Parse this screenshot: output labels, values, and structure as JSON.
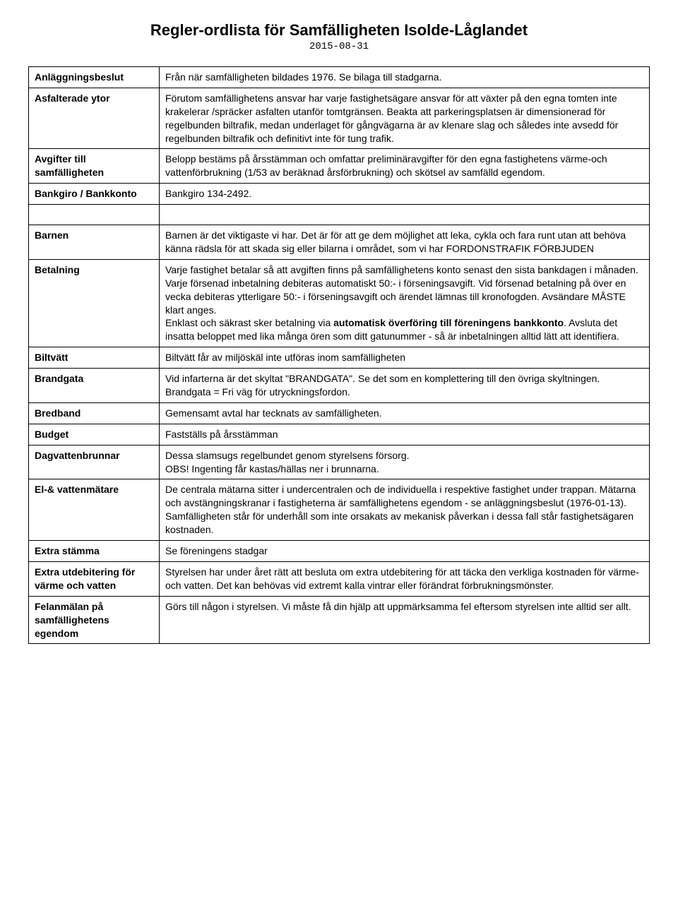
{
  "title": "Regler-ordlista för Samfälligheten Isolde-Låglandet",
  "date": "2015-08-31",
  "rows": [
    {
      "term": "Anläggningsbeslut",
      "def": "Från när samfälligheten bildades 1976. Se bilaga till stadgarna."
    },
    {
      "term": "Asfalterade ytor",
      "def": "Förutom samfällighetens ansvar har varje fastighetsägare ansvar för att växter på den egna tomten inte krakelerar /spräcker asfalten utanför tomtgränsen. Beakta att parkeringsplatsen är dimensionerad för regelbunden biltrafik, medan underlaget för gångvägarna är av klenare slag och således inte avsedd för regelbunden biltrafik och definitivt inte för tung trafik."
    },
    {
      "term": "Avgifter till samfälligheten",
      "def": "Belopp bestäms på årsstämman och omfattar preliminäravgifter för den egna fastighetens värme-och vattenförbrukning (1/53 av beräknad årsförbrukning) och skötsel av samfälld egendom."
    },
    {
      "term": "Bankgiro / Bankkonto",
      "def": "Bankgiro 134-2492."
    },
    {
      "spacer": true
    },
    {
      "term": "Barnen",
      "def": "Barnen är det viktigaste vi har. Det är för att ge dem möjlighet att leka, cykla och fara runt utan att behöva känna rädsla för att skada sig eller bilarna i området, som vi har FORDONSTRAFIK FÖRBJUDEN"
    },
    {
      "term": "Betalning",
      "def_html": "Varje fastighet betalar så att avgiften finns på samfällighetens konto senast den sista bankdagen i månaden. Varje försenad inbetalning debiteras automatiskt 50:- i förseningsavgift. Vid försenad betalning på över en vecka debiteras ytterligare 50:- i förseningsavgift och ärendet lämnas till kronofogden. Avsändare MÅSTE klart anges.<br>Enklast och säkrast sker betalning via <b class=\"inline\">automatisk överföring till föreningens bankkonto</b>. Avsluta det insatta beloppet med lika många ören som ditt gatunummer - så är inbetalningen alltid lätt att identifiera."
    },
    {
      "term": "Biltvätt",
      "def": "Biltvätt får av miljöskäl inte utföras inom samfälligheten"
    },
    {
      "term": "Brandgata",
      "def": "Vid infarterna är det skyltat \"BRANDGATA\". Se det som en komplettering till den övriga skyltningen. Brandgata = Fri väg för utryckningsfordon."
    },
    {
      "term": "Bredband",
      "def": "Gemensamt avtal har tecknats av samfälligheten."
    },
    {
      "term": "Budget",
      "def": "Fastställs på årsstämman"
    },
    {
      "term": "Dagvattenbrunnar",
      "def": "Dessa slamsugs regelbundet genom styrelsens försorg.\nOBS! Ingenting får kastas/hällas ner i brunnarna."
    },
    {
      "term": "El-& vattenmätare",
      "def": "De centrala mätarna sitter i undercentralen och de individuella i respektive fastighet under trappan. Mätarna och avstängningskranar i fastigheterna är samfällighetens egendom - se anläggningsbeslut (1976-01-13). Samfälligheten står för underhåll som inte orsakats av mekanisk påverkan i dessa fall står fastighetsägaren kostnaden."
    },
    {
      "term": "Extra stämma",
      "def": "Se föreningens stadgar"
    },
    {
      "term": "Extra utdebitering för värme och vatten",
      "def": "Styrelsen har under året rätt att besluta om extra utdebitering för att täcka den verkliga kostnaden för värme- och vatten. Det kan behövas vid extremt kalla vintrar eller förändrat förbrukningsmönster."
    },
    {
      "term": "Felanmälan på samfällighetens egendom",
      "def": "Görs till någon i styrelsen. Vi måste få din hjälp att uppmärksamma fel eftersom styrelsen inte alltid ser allt."
    }
  ]
}
